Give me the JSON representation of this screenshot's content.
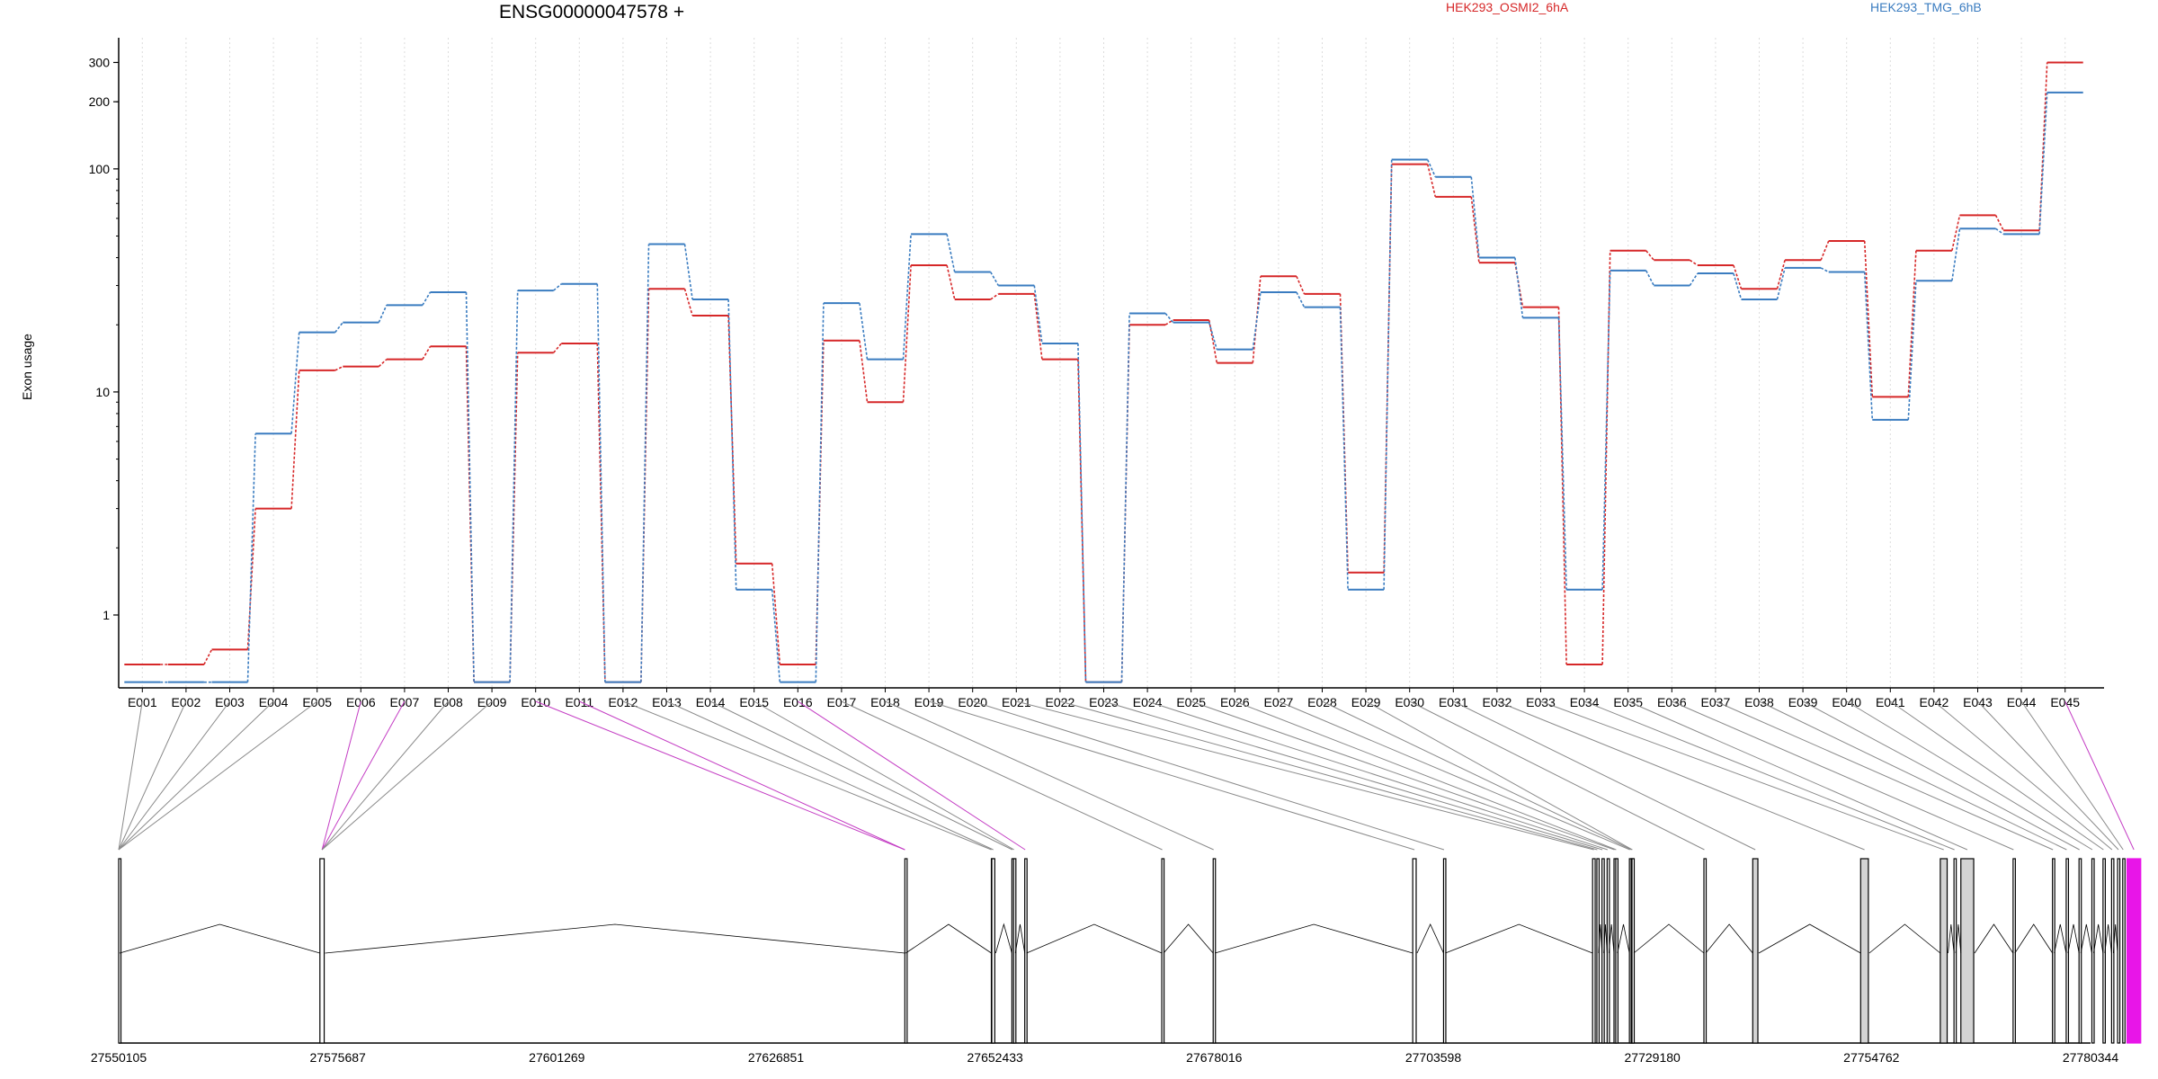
{
  "chart_data": {
    "type": "line",
    "title": "ENSG00000047578 +",
    "ylabel": "Exon usage",
    "xlabel": "",
    "yscale": "log",
    "yticks": [
      1,
      10,
      100,
      200,
      300
    ],
    "ytick_labels": [
      "1",
      "10",
      "100",
      "200",
      "300"
    ],
    "ylim": [
      0.45,
      380
    ],
    "grid": "vertical dotted lines at each exon",
    "categories": [
      "E001",
      "E002",
      "E003",
      "E004",
      "E005",
      "E006",
      "E007",
      "E008",
      "E009",
      "E010",
      "E011",
      "E012",
      "E013",
      "E014",
      "E015",
      "E016",
      "E017",
      "E018",
      "E019",
      "E020",
      "E021",
      "E022",
      "E023",
      "E024",
      "E025",
      "E026",
      "E027",
      "E028",
      "E029",
      "E030",
      "E031",
      "E032",
      "E033",
      "E034",
      "E035",
      "E036",
      "E037",
      "E038",
      "E039",
      "E040",
      "E041",
      "E042",
      "E043",
      "E044",
      "E045"
    ],
    "series": [
      {
        "name": "HEK293_OSMI2_6hA",
        "color": "#d62728",
        "values": [
          0.6,
          0.6,
          0.7,
          3.0,
          12.5,
          13.0,
          14.0,
          16.0,
          0.5,
          15.0,
          16.5,
          0.5,
          29.0,
          22.0,
          1.7,
          0.6,
          17.0,
          9.0,
          37.0,
          26.0,
          27.5,
          14.0,
          0.5,
          20.0,
          21.0,
          13.5,
          33.0,
          27.5,
          1.55,
          105.0,
          75.0,
          38.0,
          24.0,
          0.6,
          43.0,
          39.0,
          37.0,
          29.0,
          39.0,
          47.5,
          9.5,
          43.0,
          62.0,
          53.0,
          300.0
        ]
      },
      {
        "name": "HEK293_TMG_6hB",
        "color": "#3a7cc0",
        "values": [
          0.5,
          0.5,
          0.5,
          6.5,
          18.5,
          20.5,
          24.5,
          28.0,
          0.5,
          28.5,
          30.5,
          0.5,
          46.0,
          26.0,
          1.3,
          0.5,
          25.0,
          14.0,
          51.0,
          34.5,
          30.0,
          16.5,
          0.5,
          22.5,
          20.5,
          15.5,
          28.0,
          24.0,
          1.3,
          110.0,
          92.0,
          40.0,
          21.5,
          1.3,
          35.0,
          30.0,
          34.0,
          26.0,
          36.0,
          34.5,
          7.5,
          31.5,
          54.0,
          51.0,
          220.0
        ]
      }
    ],
    "gene_model": {
      "coordinate_ticks": [
        "27550105",
        "27575687",
        "27601269",
        "27626851",
        "27652433",
        "27678016",
        "27703598",
        "27729180",
        "27754762",
        "27780344"
      ],
      "range": [
        27550105,
        27780344
      ],
      "exons": [
        {
          "id": "E001",
          "start": 27550105,
          "end": 27550105
        },
        {
          "id": "E002",
          "start": 27550105,
          "end": 27550105
        },
        {
          "id": "E003",
          "start": 27550105,
          "end": 27550105
        },
        {
          "id": "E004",
          "start": 27550105,
          "end": 27550105
        },
        {
          "id": "E005",
          "start": 27550105,
          "end": 27550105
        },
        {
          "id": "E006",
          "start": 27573600,
          "end": 27574100
        },
        {
          "id": "E007",
          "start": 27573600,
          "end": 27574100
        },
        {
          "id": "E008",
          "start": 27573600,
          "end": 27574100
        },
        {
          "id": "E009",
          "start": 27573600,
          "end": 27574100
        },
        {
          "id": "E010",
          "start": 27641900,
          "end": 27641900
        },
        {
          "id": "E011",
          "start": 27641900,
          "end": 27641900
        },
        {
          "id": "E012",
          "start": 27652000,
          "end": 27652000
        },
        {
          "id": "E013",
          "start": 27652050,
          "end": 27652400
        },
        {
          "id": "E014",
          "start": 27654400,
          "end": 27654500
        },
        {
          "id": "E015",
          "start": 27654600,
          "end": 27654700
        },
        {
          "id": "E016",
          "start": 27655900,
          "end": 27656000
        },
        {
          "id": "E017",
          "start": 27671900,
          "end": 27672000
        },
        {
          "id": "E018",
          "start": 27677900,
          "end": 27678000
        },
        {
          "id": "E019",
          "start": 27701200,
          "end": 27701600
        },
        {
          "id": "E020",
          "start": 27704800,
          "end": 27704900
        },
        {
          "id": "E021",
          "start": 27722200,
          "end": 27722500
        },
        {
          "id": "E022",
          "start": 27722700,
          "end": 27722800
        },
        {
          "id": "E023",
          "start": 27723300,
          "end": 27723400
        },
        {
          "id": "E024",
          "start": 27723900,
          "end": 27724000
        },
        {
          "id": "E025",
          "start": 27724700,
          "end": 27724800
        },
        {
          "id": "E026",
          "start": 27724900,
          "end": 27725000
        },
        {
          "id": "E027",
          "start": 27726500,
          "end": 27726600
        },
        {
          "id": "E028",
          "start": 27726700,
          "end": 27726800
        },
        {
          "id": "E029",
          "start": 27726800,
          "end": 27726900
        },
        {
          "id": "E030",
          "start": 27735200,
          "end": 27735300
        },
        {
          "id": "E031",
          "start": 27740900,
          "end": 27741500
        },
        {
          "id": "E032",
          "start": 27753500,
          "end": 27754400
        },
        {
          "id": "E033",
          "start": 27762800,
          "end": 27763600
        },
        {
          "id": "E034",
          "start": 27764400,
          "end": 27764500
        },
        {
          "id": "E035",
          "start": 27765200,
          "end": 27766700
        },
        {
          "id": "E036",
          "start": 27771300,
          "end": 27771400
        },
        {
          "id": "E037",
          "start": 27775900,
          "end": 27776000
        },
        {
          "id": "E038",
          "start": 27777500,
          "end": 27777600
        },
        {
          "id": "E039",
          "start": 27779000,
          "end": 27779100
        },
        {
          "id": "E040",
          "start": 27780500,
          "end": 27780600
        },
        {
          "id": "E041",
          "start": 27781800,
          "end": 27781900
        },
        {
          "id": "E042",
          "start": 27782800,
          "end": 27782900
        },
        {
          "id": "E043",
          "start": 27783500,
          "end": 27783700
        },
        {
          "id": "E044",
          "start": 27784100,
          "end": 27784200
        },
        {
          "id": "E045",
          "start": 27784600,
          "end": 27786200
        }
      ],
      "highlight_color": "#e815e8"
    }
  }
}
